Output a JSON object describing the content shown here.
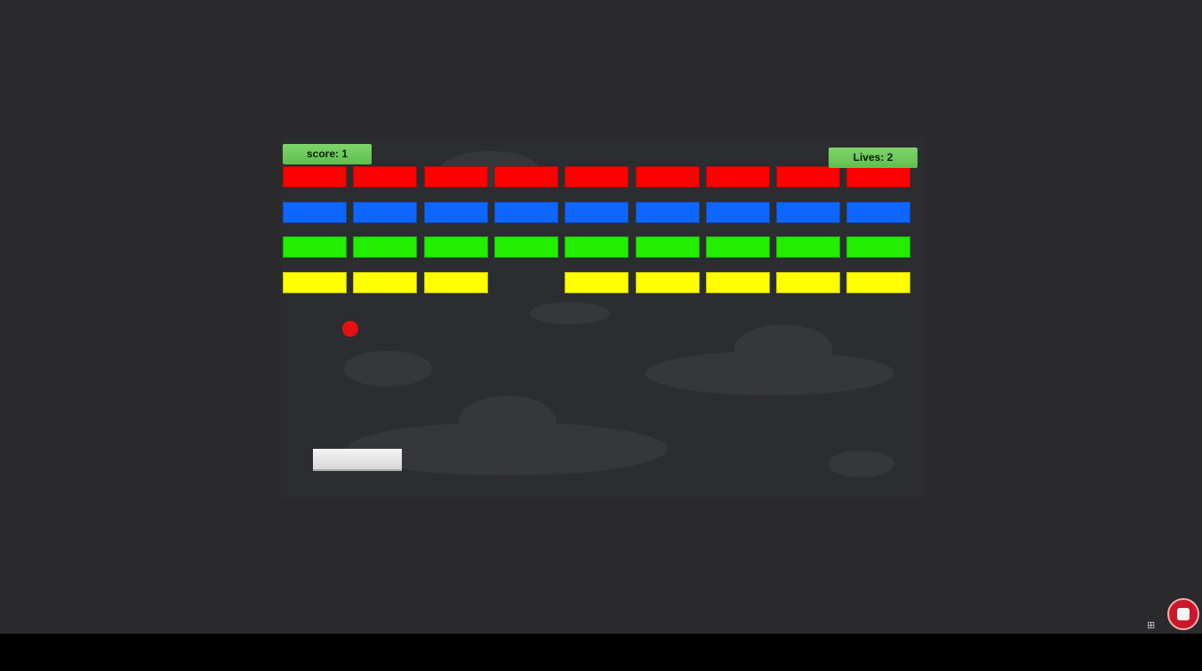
{
  "hud": {
    "score": "score: 1",
    "lives": "Lives: 2"
  },
  "colors": {
    "rows": [
      "#ff0000",
      "#0f66ff",
      "#22ee00",
      "#ffff00"
    ],
    "ball": "#e61010",
    "record": "#c8182a"
  },
  "bricks": {
    "rows": 4,
    "cols": 9,
    "missing": [
      [
        3,
        3
      ]
    ]
  },
  "icons": {
    "record": "stop-record-icon",
    "grid": "grid-icon"
  }
}
